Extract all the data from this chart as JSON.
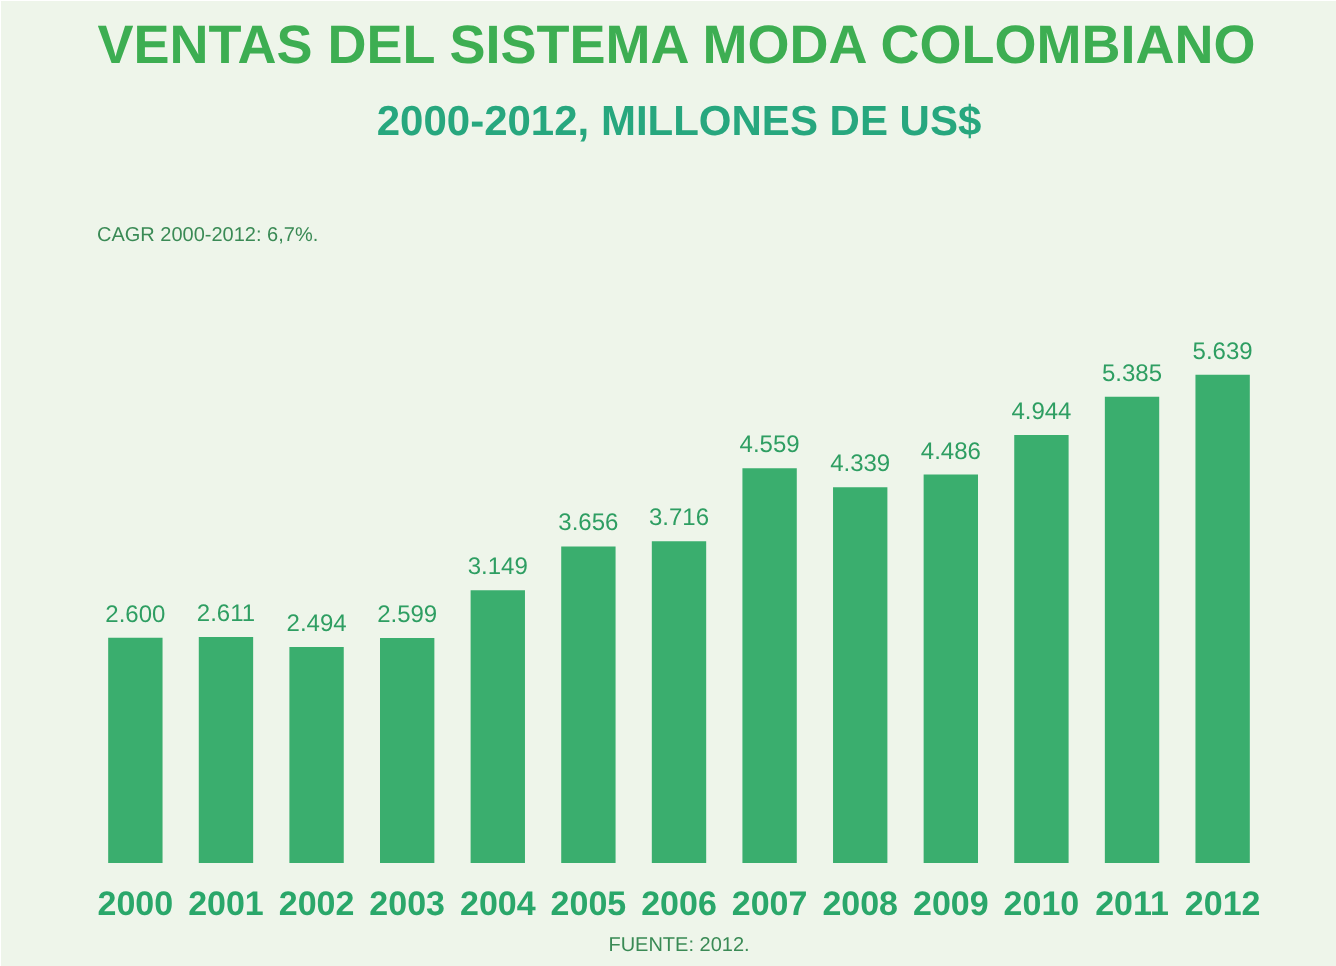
{
  "chart_data": {
    "type": "bar",
    "title": "VENTAS DEL SISTEMA MODA COLOMBIANO",
    "subtitle": "2000-2012, MILLONES DE US$",
    "categories": [
      "2000",
      "2001",
      "2002",
      "2003",
      "2004",
      "2005",
      "2006",
      "2007",
      "2008",
      "2009",
      "2010",
      "2011",
      "2012"
    ],
    "values": [
      2600,
      2611,
      2494,
      2599,
      3149,
      3656,
      3716,
      4559,
      4339,
      4486,
      4944,
      5385,
      5639
    ],
    "value_labels": [
      "2.600",
      "2.611",
      "2.494",
      "2.599",
      "3.149",
      "3.656",
      "3.716",
      "4.559",
      "4.339",
      "4.486",
      "4.944",
      "5.385",
      "5.639"
    ],
    "color": "#3aae6e",
    "annotations": [
      "CAGR 2000-2012: 6,7%.",
      "FUENTE: 2012."
    ],
    "grid": false
  }
}
